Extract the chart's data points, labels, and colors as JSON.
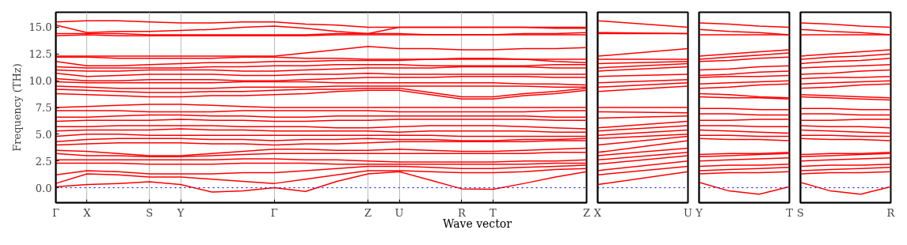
{
  "chart_data": [
    {
      "type": "line",
      "ylabel": "Frequency (THz)",
      "xlabel": "Wave vector",
      "marker": "none",
      "line_style": "solid",
      "grid": "x",
      "categories": [
        "Γ",
        "X",
        null,
        "S",
        "Y",
        null,
        null,
        "Γ",
        null,
        null,
        "Z",
        "U",
        null,
        "R",
        "T",
        null,
        null,
        "Z"
      ],
      "ylim": [
        -1.4,
        16.4
      ],
      "yticks": [
        {
          "value": 0,
          "label": "0.0"
        },
        {
          "value": 2.5,
          "label": "2.5"
        },
        {
          "value": 5,
          "label": "5.0"
        },
        {
          "value": 7.5,
          "label": "7.5"
        },
        {
          "value": 10,
          "label": "10.0"
        },
        {
          "value": 12.5,
          "label": "12.5"
        },
        {
          "value": 15,
          "label": "15.0"
        }
      ],
      "ref_lines": [
        {
          "axis": "y",
          "value": 0,
          "color": "#0000ff",
          "line_style": "dotted"
        }
      ],
      "series": [
        {
          "color": "#ff0000",
          "values": [
            15.5,
            15.6,
            15.6,
            15.5,
            15.4,
            15.4,
            15.5,
            15.5,
            15.3,
            15.2,
            15.0,
            15.0,
            15.0,
            15.0,
            15.0,
            15.0,
            15.0,
            15.0
          ]
        },
        {
          "color": "#ff0000",
          "values": [
            15.2,
            14.5,
            14.6,
            14.6,
            14.7,
            14.8,
            15.0,
            15.1,
            14.9,
            14.6,
            14.4,
            14.4,
            14.3,
            14.3,
            14.3,
            14.3,
            14.3,
            14.3
          ]
        },
        {
          "color": "#ff0000",
          "values": [
            14.4,
            14.4,
            14.4,
            14.3,
            14.3,
            14.3,
            14.3,
            14.3,
            14.3,
            14.4,
            14.4,
            15.0,
            15.0,
            15.0,
            15.0,
            15.0,
            14.9,
            14.9
          ]
        },
        {
          "color": "#ff0000",
          "values": [
            14.2,
            14.3,
            14.2,
            14.2,
            14.2,
            14.2,
            14.2,
            14.2,
            14.2,
            14.3,
            14.3,
            14.3,
            14.3,
            14.3,
            14.3,
            14.4,
            14.4,
            14.5
          ]
        },
        {
          "color": "#ff0000",
          "values": [
            12.3,
            12.3,
            12.3,
            12.3,
            12.3,
            12.3,
            12.3,
            12.3,
            12.6,
            12.9,
            13.2,
            13.0,
            13.0,
            12.9,
            12.9,
            13.0,
            13.0,
            13.1
          ]
        },
        {
          "color": "#ff0000",
          "values": [
            12.2,
            12.2,
            12.1,
            12.1,
            12.1,
            12.1,
            12.2,
            12.2,
            12.1,
            12.1,
            12.0,
            12.0,
            12.0,
            12.0,
            12.0,
            12.0,
            12.0,
            12.0
          ]
        },
        {
          "color": "#ff0000",
          "values": [
            11.8,
            11.4,
            11.4,
            11.5,
            11.6,
            11.7,
            11.7,
            11.8,
            11.8,
            11.9,
            11.9,
            11.9,
            12.0,
            12.1,
            12.1,
            12.0,
            11.8,
            11.7
          ]
        },
        {
          "color": "#ff0000",
          "values": [
            11.3,
            11.2,
            11.2,
            11.2,
            11.2,
            11.3,
            11.3,
            11.4,
            11.4,
            11.5,
            11.5,
            11.5,
            11.4,
            11.4,
            11.4,
            11.4,
            11.5,
            11.5
          ]
        },
        {
          "color": "#ff0000",
          "values": [
            11.0,
            10.9,
            10.9,
            11.0,
            11.0,
            11.0,
            10.9,
            10.9,
            11.0,
            11.1,
            11.2,
            11.2,
            11.2,
            11.3,
            11.3,
            11.3,
            11.2,
            11.2
          ]
        },
        {
          "color": "#ff0000",
          "values": [
            10.7,
            10.4,
            10.5,
            10.6,
            10.6,
            10.6,
            10.5,
            10.5,
            10.6,
            10.6,
            10.7,
            10.6,
            10.6,
            10.6,
            10.6,
            10.6,
            10.6,
            10.6
          ]
        },
        {
          "color": "#ff0000",
          "values": [
            10.2,
            10.0,
            10.0,
            10.1,
            10.1,
            10.1,
            10.0,
            10.0,
            10.1,
            10.2,
            10.3,
            10.3,
            10.3,
            10.4,
            10.4,
            10.4,
            10.3,
            10.3
          ]
        },
        {
          "color": "#ff0000",
          "values": [
            9.9,
            9.8,
            9.8,
            9.8,
            9.8,
            9.8,
            9.9,
            9.9,
            9.9,
            9.8,
            9.8,
            9.8,
            9.8,
            9.8,
            9.8,
            9.7,
            9.7,
            9.6
          ]
        },
        {
          "color": "#ff0000",
          "values": [
            9.5,
            9.4,
            9.3,
            9.3,
            9.3,
            9.3,
            9.4,
            9.4,
            9.4,
            9.5,
            9.5,
            9.5,
            9.5,
            9.5,
            9.5,
            9.5,
            9.4,
            9.4
          ]
        },
        {
          "color": "#ff0000",
          "values": [
            9.2,
            9.1,
            9.0,
            8.9,
            8.9,
            9.0,
            9.0,
            9.1,
            9.2,
            9.2,
            9.3,
            9.3,
            8.9,
            8.5,
            8.5,
            8.8,
            9.0,
            9.3
          ]
        },
        {
          "color": "#ff0000",
          "values": [
            8.8,
            8.7,
            8.6,
            8.5,
            8.5,
            8.6,
            8.6,
            8.7,
            8.8,
            9.0,
            9.1,
            9.1,
            8.7,
            8.3,
            8.3,
            8.6,
            8.8,
            9.1
          ]
        },
        {
          "color": "#ff0000",
          "values": [
            7.5,
            7.6,
            7.7,
            7.8,
            7.8,
            7.7,
            7.6,
            7.5,
            7.5,
            7.5,
            7.5,
            7.5,
            7.5,
            7.5,
            7.5,
            7.5,
            7.5,
            7.5
          ]
        },
        {
          "color": "#ff0000",
          "values": [
            7.2,
            7.2,
            7.2,
            7.1,
            7.1,
            7.1,
            7.2,
            7.2,
            7.2,
            7.2,
            7.2,
            7.1,
            7.1,
            7.1,
            7.1,
            7.1,
            7.2,
            7.2
          ]
        },
        {
          "color": "#ff0000",
          "values": [
            6.6,
            6.6,
            6.7,
            6.8,
            6.8,
            6.7,
            6.7,
            6.6,
            6.6,
            6.7,
            6.7,
            6.7,
            6.7,
            6.7,
            6.7,
            6.7,
            6.6,
            6.6
          ]
        },
        {
          "color": "#ff0000",
          "values": [
            6.2,
            6.3,
            6.3,
            6.3,
            6.4,
            6.3,
            6.3,
            6.2,
            6.2,
            6.3,
            6.3,
            6.4,
            6.4,
            6.4,
            6.4,
            6.4,
            6.3,
            6.3
          ]
        },
        {
          "color": "#ff0000",
          "values": [
            5.7,
            5.7,
            5.8,
            5.8,
            5.8,
            5.8,
            5.7,
            5.7,
            5.7,
            5.6,
            5.6,
            5.7,
            5.8,
            5.8,
            5.8,
            5.7,
            5.6,
            5.5
          ]
        },
        {
          "color": "#ff0000",
          "values": [
            5.3,
            5.4,
            5.4,
            5.4,
            5.5,
            5.4,
            5.4,
            5.3,
            5.3,
            5.3,
            5.3,
            5.2,
            5.3,
            5.3,
            5.3,
            5.3,
            5.2,
            5.2
          ]
        },
        {
          "color": "#ff0000",
          "values": [
            4.8,
            5.0,
            5.0,
            4.9,
            4.9,
            4.9,
            4.9,
            4.9,
            4.9,
            4.9,
            4.9,
            4.9,
            4.9,
            4.8,
            4.8,
            4.8,
            4.8,
            4.8
          ]
        },
        {
          "color": "#ff0000",
          "values": [
            4.3,
            4.5,
            4.6,
            4.6,
            4.6,
            4.5,
            4.5,
            4.4,
            4.5,
            4.5,
            4.6,
            4.5,
            4.5,
            4.4,
            4.4,
            4.5,
            4.5,
            4.6
          ]
        },
        {
          "color": "#ff0000",
          "values": [
            4.0,
            4.1,
            4.2,
            4.2,
            4.2,
            4.1,
            4.1,
            4.0,
            4.1,
            4.1,
            4.2,
            4.3,
            4.3,
            4.3,
            4.3,
            4.3,
            4.4,
            4.4
          ]
        },
        {
          "color": "#ff0000",
          "values": [
            3.5,
            3.4,
            3.2,
            3.0,
            3.0,
            3.2,
            3.4,
            3.6,
            3.6,
            3.5,
            3.5,
            3.6,
            3.5,
            3.4,
            3.4,
            3.5,
            3.6,
            3.7
          ]
        },
        {
          "color": "#ff0000",
          "values": [
            3.2,
            3.0,
            3.0,
            2.9,
            2.9,
            3.0,
            3.1,
            3.2,
            3.2,
            3.2,
            3.2,
            3.2,
            3.2,
            3.2,
            3.2,
            3.2,
            3.3,
            3.3
          ]
        },
        {
          "color": "#ff0000",
          "values": [
            2.6,
            2.6,
            2.6,
            2.6,
            2.6,
            2.6,
            2.7,
            2.7,
            2.6,
            2.6,
            2.5,
            2.4,
            2.4,
            2.4,
            2.4,
            2.5,
            2.5,
            2.6
          ]
        },
        {
          "color": "#ff0000",
          "values": [
            2.3,
            2.3,
            2.3,
            2.2,
            2.2,
            2.2,
            2.3,
            2.3,
            2.3,
            2.2,
            2.2,
            2.2,
            2.2,
            2.2,
            2.2,
            2.2,
            2.3,
            2.3
          ]
        },
        {
          "color": "#ff0000",
          "values": [
            1.2,
            1.6,
            1.5,
            1.3,
            1.3,
            1.3,
            1.4,
            1.4,
            1.6,
            1.8,
            2.0,
            2.0,
            1.9,
            1.8,
            1.8,
            1.9,
            2.0,
            2.1
          ]
        },
        {
          "color": "#ff0000",
          "values": [
            0.4,
            1.3,
            1.2,
            1.0,
            1.0,
            0.8,
            0.6,
            0.4,
            0.8,
            1.2,
            1.6,
            1.6,
            1.5,
            1.4,
            1.4,
            1.5,
            1.7,
            1.8
          ]
        },
        {
          "color": "#ff0000",
          "values": [
            0.1,
            0.3,
            0.4,
            0.55,
            0.3,
            -0.4,
            -0.3,
            0.0,
            -0.35,
            0.6,
            1.3,
            1.5,
            0.7,
            -0.1,
            -0.15,
            0.4,
            1.0,
            1.5
          ]
        }
      ]
    },
    {
      "type": "line",
      "tick_labels": "x",
      "marker": "none",
      "line_style": "solid",
      "categories": [
        "X",
        "U"
      ],
      "ylim": [
        -1.4,
        16.4
      ],
      "ref_lines": [
        {
          "axis": "y",
          "value": 0,
          "color": "#0000ff",
          "line_style": "dotted"
        }
      ],
      "series": [
        {
          "color": "#ff0000",
          "values": [
            15.6,
            15.0
          ]
        },
        {
          "color": "#ff0000",
          "values": [
            14.5,
            14.4
          ]
        },
        {
          "color": "#ff0000",
          "values": [
            14.4,
            14.4
          ]
        },
        {
          "color": "#ff0000",
          "values": [
            12.3,
            13.0
          ]
        },
        {
          "color": "#ff0000",
          "values": [
            12.0,
            12.0
          ]
        },
        {
          "color": "#ff0000",
          "values": [
            11.6,
            11.8
          ]
        },
        {
          "color": "#ff0000",
          "values": [
            11.2,
            11.6
          ]
        },
        {
          "color": "#ff0000",
          "values": [
            10.9,
            11.3
          ]
        },
        {
          "color": "#ff0000",
          "values": [
            10.4,
            10.6
          ]
        },
        {
          "color": "#ff0000",
          "values": [
            9.8,
            10.1
          ]
        },
        {
          "color": "#ff0000",
          "values": [
            9.4,
            9.8
          ]
        },
        {
          "color": "#ff0000",
          "values": [
            9.0,
            9.5
          ]
        },
        {
          "color": "#ff0000",
          "values": [
            7.5,
            7.5
          ]
        },
        {
          "color": "#ff0000",
          "values": [
            7.1,
            7.0
          ]
        },
        {
          "color": "#ff0000",
          "values": [
            6.5,
            6.7
          ]
        },
        {
          "color": "#ff0000",
          "values": [
            5.6,
            6.2
          ]
        },
        {
          "color": "#ff0000",
          "values": [
            5.3,
            5.8
          ]
        },
        {
          "color": "#ff0000",
          "values": [
            4.9,
            5.4
          ]
        },
        {
          "color": "#ff0000",
          "values": [
            4.6,
            5.0
          ]
        },
        {
          "color": "#ff0000",
          "values": [
            4.0,
            4.8
          ]
        },
        {
          "color": "#ff0000",
          "values": [
            3.3,
            4.4
          ]
        },
        {
          "color": "#ff0000",
          "values": [
            3.0,
            3.7
          ]
        },
        {
          "color": "#ff0000",
          "values": [
            2.6,
            3.3
          ]
        },
        {
          "color": "#ff0000",
          "values": [
            2.2,
            3.0
          ]
        },
        {
          "color": "#ff0000",
          "values": [
            1.6,
            2.5
          ]
        },
        {
          "color": "#ff0000",
          "values": [
            1.2,
            2.0
          ]
        },
        {
          "color": "#ff0000",
          "values": [
            0.3,
            1.5
          ]
        }
      ]
    },
    {
      "type": "line",
      "tick_labels": "x",
      "marker": "none",
      "line_style": "solid",
      "categories": [
        "Y",
        null,
        null,
        "T"
      ],
      "ylim": [
        -1.4,
        16.4
      ],
      "ref_lines": [
        {
          "axis": "y",
          "value": 0,
          "color": "#0000ff",
          "line_style": "dotted"
        }
      ],
      "series": [
        {
          "color": "#ff0000",
          "values": [
            15.4,
            15.3,
            15.1,
            15.0
          ]
        },
        {
          "color": "#ff0000",
          "values": [
            14.8,
            14.6,
            14.5,
            14.3
          ]
        },
        {
          "color": "#ff0000",
          "values": [
            14.3,
            14.3,
            14.3,
            14.3
          ]
        },
        {
          "color": "#ff0000",
          "values": [
            12.3,
            12.5,
            12.7,
            12.9
          ]
        },
        {
          "color": "#ff0000",
          "values": [
            12.0,
            12.2,
            12.4,
            12.6
          ]
        },
        {
          "color": "#ff0000",
          "values": [
            11.8,
            11.9,
            12.1,
            12.2
          ]
        },
        {
          "color": "#ff0000",
          "values": [
            11.0,
            11.1,
            11.3,
            11.4
          ]
        },
        {
          "color": "#ff0000",
          "values": [
            10.5,
            10.6,
            10.8,
            10.9
          ]
        },
        {
          "color": "#ff0000",
          "values": [
            10.3,
            10.4,
            10.4,
            10.5
          ]
        },
        {
          "color": "#ff0000",
          "values": [
            9.7,
            9.8,
            9.9,
            10.0
          ]
        },
        {
          "color": "#ff0000",
          "values": [
            9.3,
            9.4,
            9.6,
            9.7
          ]
        },
        {
          "color": "#ff0000",
          "values": [
            8.8,
            8.7,
            8.5,
            8.4
          ]
        },
        {
          "color": "#ff0000",
          "values": [
            8.5,
            8.4,
            8.4,
            8.3
          ]
        },
        {
          "color": "#ff0000",
          "values": [
            7.4,
            7.4,
            7.3,
            7.3
          ]
        },
        {
          "color": "#ff0000",
          "values": [
            6.9,
            6.9,
            6.8,
            6.8
          ]
        },
        {
          "color": "#ff0000",
          "values": [
            6.3,
            6.3,
            6.4,
            6.4
          ]
        },
        {
          "color": "#ff0000",
          "values": [
            5.8,
            5.8,
            5.7,
            5.7
          ]
        },
        {
          "color": "#ff0000",
          "values": [
            5.4,
            5.3,
            5.2,
            5.1
          ]
        },
        {
          "color": "#ff0000",
          "values": [
            4.9,
            4.9,
            4.8,
            4.8
          ]
        },
        {
          "color": "#ff0000",
          "values": [
            4.6,
            4.5,
            4.5,
            4.4
          ]
        },
        {
          "color": "#ff0000",
          "values": [
            3.1,
            3.2,
            3.2,
            3.3
          ]
        },
        {
          "color": "#ff0000",
          "values": [
            2.9,
            3.0,
            3.1,
            3.2
          ]
        },
        {
          "color": "#ff0000",
          "values": [
            2.5,
            2.6,
            2.7,
            2.8
          ]
        },
        {
          "color": "#ff0000",
          "values": [
            2.0,
            2.1,
            2.1,
            2.2
          ]
        },
        {
          "color": "#ff0000",
          "values": [
            1.6,
            1.7,
            1.8,
            1.9
          ]
        },
        {
          "color": "#ff0000",
          "values": [
            1.3,
            1.4,
            1.4,
            1.5
          ]
        },
        {
          "color": "#ff0000",
          "values": [
            0.5,
            -0.3,
            -0.6,
            0.1
          ]
        }
      ]
    },
    {
      "type": "line",
      "tick_labels": "x",
      "marker": "none",
      "line_style": "solid",
      "categories": [
        "S",
        null,
        null,
        "R"
      ],
      "ylim": [
        -1.4,
        16.4
      ],
      "ref_lines": [
        {
          "axis": "y",
          "value": 0,
          "color": "#0000ff",
          "line_style": "dotted"
        }
      ],
      "series": [
        {
          "color": "#ff0000",
          "values": [
            15.4,
            15.3,
            15.1,
            15.0
          ]
        },
        {
          "color": "#ff0000",
          "values": [
            14.8,
            14.6,
            14.5,
            14.3
          ]
        },
        {
          "color": "#ff0000",
          "values": [
            14.3,
            14.3,
            14.3,
            14.3
          ]
        },
        {
          "color": "#ff0000",
          "values": [
            12.3,
            12.5,
            12.7,
            12.9
          ]
        },
        {
          "color": "#ff0000",
          "values": [
            12.0,
            12.2,
            12.3,
            12.5
          ]
        },
        {
          "color": "#ff0000",
          "values": [
            11.6,
            11.8,
            11.9,
            12.1
          ]
        },
        {
          "color": "#ff0000",
          "values": [
            11.2,
            11.3,
            11.4,
            11.5
          ]
        },
        {
          "color": "#ff0000",
          "values": [
            10.6,
            10.7,
            10.9,
            11.0
          ]
        },
        {
          "color": "#ff0000",
          "values": [
            10.2,
            10.3,
            10.3,
            10.4
          ]
        },
        {
          "color": "#ff0000",
          "values": [
            9.7,
            9.8,
            9.9,
            10.0
          ]
        },
        {
          "color": "#ff0000",
          "values": [
            9.3,
            9.4,
            9.6,
            9.7
          ]
        },
        {
          "color": "#ff0000",
          "values": [
            8.7,
            8.6,
            8.5,
            8.4
          ]
        },
        {
          "color": "#ff0000",
          "values": [
            8.5,
            8.4,
            8.3,
            8.2
          ]
        },
        {
          "color": "#ff0000",
          "values": [
            7.4,
            7.4,
            7.3,
            7.3
          ]
        },
        {
          "color": "#ff0000",
          "values": [
            6.9,
            6.9,
            6.8,
            6.8
          ]
        },
        {
          "color": "#ff0000",
          "values": [
            6.3,
            6.3,
            6.4,
            6.4
          ]
        },
        {
          "color": "#ff0000",
          "values": [
            5.8,
            5.7,
            5.7,
            5.6
          ]
        },
        {
          "color": "#ff0000",
          "values": [
            5.4,
            5.3,
            5.2,
            5.1
          ]
        },
        {
          "color": "#ff0000",
          "values": [
            4.9,
            4.9,
            4.8,
            4.8
          ]
        },
        {
          "color": "#ff0000",
          "values": [
            4.6,
            4.5,
            4.5,
            4.4
          ]
        },
        {
          "color": "#ff0000",
          "values": [
            3.1,
            3.2,
            3.2,
            3.3
          ]
        },
        {
          "color": "#ff0000",
          "values": [
            2.9,
            3.0,
            3.1,
            3.2
          ]
        },
        {
          "color": "#ff0000",
          "values": [
            2.5,
            2.6,
            2.7,
            2.8
          ]
        },
        {
          "color": "#ff0000",
          "values": [
            2.0,
            2.1,
            2.1,
            2.2
          ]
        },
        {
          "color": "#ff0000",
          "values": [
            1.6,
            1.7,
            1.8,
            1.9
          ]
        },
        {
          "color": "#ff0000",
          "values": [
            1.3,
            1.4,
            1.4,
            1.5
          ]
        },
        {
          "color": "#ff0000",
          "values": [
            0.5,
            -0.3,
            -0.6,
            0.1
          ]
        }
      ]
    }
  ]
}
